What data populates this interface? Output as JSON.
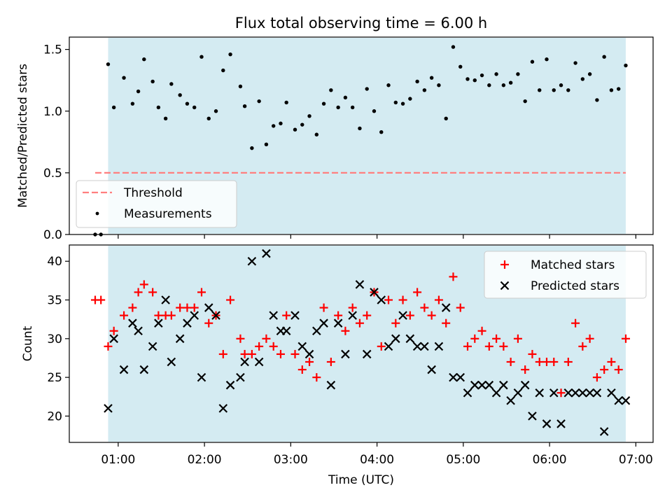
{
  "chart_data": [
    {
      "type": "scatter",
      "title": "Flux total observing time = 6.00 h",
      "xlabel": "",
      "ylabel": "Matched/Predicted stars",
      "xlim": [
        "00:26",
        "07:12"
      ],
      "ylim": [
        0,
        1.6
      ],
      "yticks": [
        "0.0",
        "0.5",
        "1.0",
        "1.5"
      ],
      "shaded_span": [
        "00:53",
        "06:53"
      ],
      "threshold": {
        "name": "Threshold",
        "y": 0.5,
        "x_start": "00:44",
        "x_end": "06:53",
        "color": "#ff7f7f",
        "style": "dashed"
      },
      "legend": {
        "position": "lower-left",
        "entries": [
          "Threshold",
          "Measurements"
        ]
      },
      "series": [
        {
          "name": "Measurements",
          "color": "#000000",
          "x": [
            "00:44",
            "00:48",
            "00:53",
            "00:57",
            "01:04",
            "01:10",
            "01:14",
            "01:18",
            "01:24",
            "01:28",
            "01:33",
            "01:37",
            "01:43",
            "01:48",
            "01:53",
            "01:58",
            "02:03",
            "02:08",
            "02:13",
            "02:18",
            "02:25",
            "02:28",
            "02:33",
            "02:38",
            "02:43",
            "02:48",
            "02:53",
            "02:57",
            "03:03",
            "03:08",
            "03:13",
            "03:18",
            "03:23",
            "03:28",
            "03:33",
            "03:38",
            "03:43",
            "03:48",
            "03:53",
            "03:58",
            "04:03",
            "04:08",
            "04:13",
            "04:18",
            "04:23",
            "04:28",
            "04:33",
            "04:38",
            "04:43",
            "04:48",
            "04:53",
            "04:58",
            "05:03",
            "05:08",
            "05:13",
            "05:18",
            "05:23",
            "05:28",
            "05:33",
            "05:38",
            "05:43",
            "05:48",
            "05:53",
            "05:58",
            "06:03",
            "06:08",
            "06:13",
            "06:18",
            "06:23",
            "06:28",
            "06:33",
            "06:38",
            "06:43",
            "06:48",
            "06:53"
          ],
          "y": [
            0.0,
            0.0,
            1.38,
            1.03,
            1.27,
            1.06,
            1.16,
            1.42,
            1.24,
            1.03,
            0.94,
            1.22,
            1.13,
            1.06,
            1.03,
            1.44,
            0.94,
            1.0,
            1.33,
            1.46,
            1.2,
            1.04,
            0.7,
            1.08,
            0.73,
            0.88,
            0.9,
            1.07,
            0.85,
            0.89,
            0.96,
            0.81,
            1.06,
            1.17,
            1.03,
            1.11,
            1.03,
            0.86,
            1.18,
            1.0,
            0.83,
            1.21,
            1.07,
            1.06,
            1.1,
            1.24,
            1.17,
            1.27,
            1.21,
            0.94,
            1.52,
            1.36,
            1.26,
            1.25,
            1.29,
            1.21,
            1.3,
            1.21,
            1.23,
            1.3,
            1.08,
            1.4,
            1.17,
            1.42,
            1.17,
            1.21,
            1.17,
            1.39,
            1.26,
            1.3,
            1.09,
            1.44,
            1.17,
            1.18,
            1.37
          ]
        }
      ]
    },
    {
      "type": "scatter",
      "title": "",
      "xlabel": "Time (UTC)",
      "ylabel": "Count",
      "xlim": [
        "00:26",
        "07:12"
      ],
      "ylim": [
        16.6,
        42.1
      ],
      "yticks": [
        "20",
        "25",
        "30",
        "35",
        "40"
      ],
      "xticks": [
        "01:00",
        "02:00",
        "03:00",
        "04:00",
        "05:00",
        "06:00",
        "07:00"
      ],
      "shaded_span": [
        "00:53",
        "06:53"
      ],
      "legend": {
        "position": "top-right",
        "entries": [
          "Matched stars",
          "Predicted stars"
        ]
      },
      "series": [
        {
          "name": "Matched stars",
          "marker": "+",
          "color": "#ff0000",
          "x": [
            "00:44",
            "00:48",
            "00:53",
            "00:57",
            "01:04",
            "01:10",
            "01:14",
            "01:18",
            "01:24",
            "01:28",
            "01:33",
            "01:37",
            "01:43",
            "01:48",
            "01:53",
            "01:58",
            "02:03",
            "02:08",
            "02:13",
            "02:18",
            "02:25",
            "02:28",
            "02:33",
            "02:38",
            "02:43",
            "02:48",
            "02:53",
            "02:57",
            "03:03",
            "03:08",
            "03:13",
            "03:18",
            "03:23",
            "03:28",
            "03:33",
            "03:38",
            "03:43",
            "03:48",
            "03:53",
            "03:58",
            "04:03",
            "04:08",
            "04:13",
            "04:18",
            "04:23",
            "04:28",
            "04:33",
            "04:38",
            "04:43",
            "04:48",
            "04:53",
            "04:58",
            "05:03",
            "05:08",
            "05:13",
            "05:18",
            "05:23",
            "05:28",
            "05:33",
            "05:38",
            "05:43",
            "05:48",
            "05:53",
            "05:58",
            "06:03",
            "06:08",
            "06:13",
            "06:18",
            "06:23",
            "06:28",
            "06:33",
            "06:38",
            "06:43",
            "06:48",
            "06:53"
          ],
          "y": [
            35,
            35,
            29,
            31,
            33,
            34,
            36,
            37,
            36,
            33,
            33,
            33,
            34,
            34,
            34,
            36,
            32,
            33,
            28,
            35,
            30,
            28,
            28,
            29,
            30,
            29,
            28,
            33,
            28,
            26,
            27,
            25,
            34,
            27,
            33,
            31,
            34,
            32,
            33,
            36,
            29,
            35,
            32,
            35,
            33,
            36,
            34,
            33,
            35,
            32,
            38,
            34,
            29,
            30,
            31,
            29,
            30,
            29,
            27,
            30,
            26,
            28,
            27,
            27,
            27,
            23,
            27,
            32,
            29,
            30,
            25,
            26,
            27,
            26,
            30
          ]
        },
        {
          "name": "Predicted stars",
          "marker": "x",
          "color": "#000000",
          "x": [
            "00:53",
            "00:57",
            "01:04",
            "01:10",
            "01:14",
            "01:18",
            "01:24",
            "01:28",
            "01:33",
            "01:37",
            "01:43",
            "01:48",
            "01:53",
            "01:58",
            "02:03",
            "02:08",
            "02:13",
            "02:18",
            "02:25",
            "02:28",
            "02:33",
            "02:38",
            "02:43",
            "02:48",
            "02:53",
            "02:57",
            "03:03",
            "03:08",
            "03:13",
            "03:18",
            "03:23",
            "03:28",
            "03:33",
            "03:38",
            "03:43",
            "03:48",
            "03:53",
            "03:58",
            "04:03",
            "04:08",
            "04:13",
            "04:18",
            "04:23",
            "04:28",
            "04:33",
            "04:38",
            "04:43",
            "04:48",
            "04:53",
            "04:58",
            "05:03",
            "05:08",
            "05:13",
            "05:18",
            "05:23",
            "05:28",
            "05:33",
            "05:38",
            "05:43",
            "05:48",
            "05:53",
            "05:58",
            "06:03",
            "06:08",
            "06:13",
            "06:18",
            "06:23",
            "06:28",
            "06:33",
            "06:38",
            "06:43",
            "06:48",
            "06:53"
          ],
          "y": [
            21,
            30,
            26,
            32,
            31,
            26,
            29,
            32,
            35,
            27,
            30,
            32,
            33,
            25,
            34,
            33,
            21,
            24,
            25,
            27,
            40,
            27,
            41,
            33,
            31,
            31,
            33,
            29,
            28,
            31,
            32,
            24,
            32,
            28,
            33,
            37,
            28,
            36,
            35,
            29,
            30,
            33,
            30,
            29,
            29,
            26,
            29,
            34,
            25,
            25,
            23,
            24,
            24,
            24,
            23,
            24,
            22,
            23,
            24,
            20,
            23,
            19,
            23,
            19,
            23,
            23,
            23,
            23,
            23,
            18,
            23,
            22,
            22
          ]
        }
      ]
    }
  ]
}
